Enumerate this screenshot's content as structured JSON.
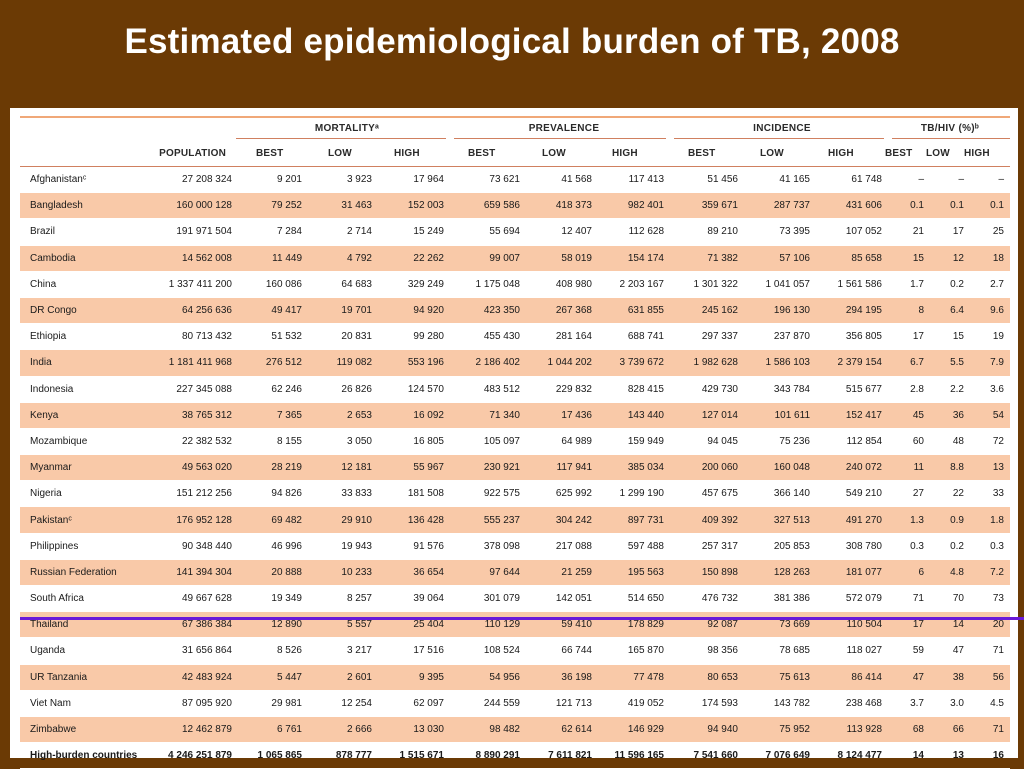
{
  "title": "Estimated epidemiological burden of TB, 2008",
  "groups": {
    "mortality": "MORTALITYᵃ",
    "prevalence": "PREVALENCE",
    "incidence": "INCIDENCE",
    "tbhiv": "TB/HIV (%)ᵇ"
  },
  "columns": {
    "population": "POPULATION",
    "best": "BEST",
    "low": "LOW",
    "high": "HIGH"
  },
  "rows": [
    {
      "country": "Afghanistanᶜ",
      "pop": "27 208 324",
      "m_best": "9 201",
      "m_low": "3 923",
      "m_high": "17 964",
      "p_best": "73 621",
      "p_low": "41 568",
      "p_high": "117 413",
      "i_best": "51 456",
      "i_low": "41 165",
      "i_high": "61 748",
      "h_best": "–",
      "h_low": "–",
      "h_high": "–"
    },
    {
      "country": "Bangladesh",
      "pop": "160 000 128",
      "m_best": "79 252",
      "m_low": "31 463",
      "m_high": "152 003",
      "p_best": "659 586",
      "p_low": "418 373",
      "p_high": "982 401",
      "i_best": "359 671",
      "i_low": "287 737",
      "i_high": "431 606",
      "h_best": "0.1",
      "h_low": "0.1",
      "h_high": "0.1"
    },
    {
      "country": "Brazil",
      "pop": "191 971 504",
      "m_best": "7 284",
      "m_low": "2 714",
      "m_high": "15 249",
      "p_best": "55 694",
      "p_low": "12 407",
      "p_high": "112 628",
      "i_best": "89 210",
      "i_low": "73 395",
      "i_high": "107 052",
      "h_best": "21",
      "h_low": "17",
      "h_high": "25"
    },
    {
      "country": "Cambodia",
      "pop": "14 562 008",
      "m_best": "11 449",
      "m_low": "4 792",
      "m_high": "22 262",
      "p_best": "99 007",
      "p_low": "58 019",
      "p_high": "154 174",
      "i_best": "71 382",
      "i_low": "57 106",
      "i_high": "85 658",
      "h_best": "15",
      "h_low": "12",
      "h_high": "18"
    },
    {
      "country": "China",
      "pop": "1 337 411 200",
      "m_best": "160 086",
      "m_low": "64 683",
      "m_high": "329 249",
      "p_best": "1 175 048",
      "p_low": "408 980",
      "p_high": "2 203 167",
      "i_best": "1 301 322",
      "i_low": "1 041 057",
      "i_high": "1 561 586",
      "h_best": "1.7",
      "h_low": "0.2",
      "h_high": "2.7"
    },
    {
      "country": "DR Congo",
      "pop": "64 256 636",
      "m_best": "49 417",
      "m_low": "19 701",
      "m_high": "94 920",
      "p_best": "423 350",
      "p_low": "267 368",
      "p_high": "631 855",
      "i_best": "245 162",
      "i_low": "196 130",
      "i_high": "294 195",
      "h_best": "8",
      "h_low": "6.4",
      "h_high": "9.6"
    },
    {
      "country": "Ethiopia",
      "pop": "80 713 432",
      "m_best": "51 532",
      "m_low": "20 831",
      "m_high": "99 280",
      "p_best": "455 430",
      "p_low": "281 164",
      "p_high": "688 741",
      "i_best": "297 337",
      "i_low": "237 870",
      "i_high": "356 805",
      "h_best": "17",
      "h_low": "15",
      "h_high": "19"
    },
    {
      "country": "India",
      "pop": "1 181 411 968",
      "m_best": "276 512",
      "m_low": "119 082",
      "m_high": "553 196",
      "p_best": "2 186 402",
      "p_low": "1 044 202",
      "p_high": "3 739 672",
      "i_best": "1 982 628",
      "i_low": "1 586 103",
      "i_high": "2 379 154",
      "h_best": "6.7",
      "h_low": "5.5",
      "h_high": "7.9"
    },
    {
      "country": "Indonesia",
      "pop": "227 345 088",
      "m_best": "62 246",
      "m_low": "26 826",
      "m_high": "124 570",
      "p_best": "483 512",
      "p_low": "229 832",
      "p_high": "828 415",
      "i_best": "429 730",
      "i_low": "343 784",
      "i_high": "515 677",
      "h_best": "2.8",
      "h_low": "2.2",
      "h_high": "3.6"
    },
    {
      "country": "Kenya",
      "pop": "38 765 312",
      "m_best": "7 365",
      "m_low": "2 653",
      "m_high": "16 092",
      "p_best": "71 340",
      "p_low": "17 436",
      "p_high": "143 440",
      "i_best": "127 014",
      "i_low": "101 611",
      "i_high": "152 417",
      "h_best": "45",
      "h_low": "36",
      "h_high": "54"
    },
    {
      "country": "Mozambique",
      "pop": "22 382 532",
      "m_best": "8 155",
      "m_low": "3 050",
      "m_high": "16 805",
      "p_best": "105 097",
      "p_low": "64 989",
      "p_high": "159 949",
      "i_best": "94 045",
      "i_low": "75 236",
      "i_high": "112 854",
      "h_best": "60",
      "h_low": "48",
      "h_high": "72"
    },
    {
      "country": "Myanmar",
      "pop": "49 563 020",
      "m_best": "28 219",
      "m_low": "12 181",
      "m_high": "55 967",
      "p_best": "230 921",
      "p_low": "117 941",
      "p_high": "385 034",
      "i_best": "200 060",
      "i_low": "160 048",
      "i_high": "240 072",
      "h_best": "11",
      "h_low": "8.8",
      "h_high": "13"
    },
    {
      "country": "Nigeria",
      "pop": "151 212 256",
      "m_best": "94 826",
      "m_low": "33 833",
      "m_high": "181 508",
      "p_best": "922 575",
      "p_low": "625 992",
      "p_high": "1 299 190",
      "i_best": "457 675",
      "i_low": "366 140",
      "i_high": "549 210",
      "h_best": "27",
      "h_low": "22",
      "h_high": "33"
    },
    {
      "country": "Pakistanᶜ",
      "pop": "176 952 128",
      "m_best": "69 482",
      "m_low": "29 910",
      "m_high": "136 428",
      "p_best": "555 237",
      "p_low": "304 242",
      "p_high": "897 731",
      "i_best": "409 392",
      "i_low": "327 513",
      "i_high": "491 270",
      "h_best": "1.3",
      "h_low": "0.9",
      "h_high": "1.8"
    },
    {
      "country": "Philippines",
      "pop": "90 348 440",
      "m_best": "46 996",
      "m_low": "19 943",
      "m_high": "91 576",
      "p_best": "378 098",
      "p_low": "217 088",
      "p_high": "597 488",
      "i_best": "257 317",
      "i_low": "205 853",
      "i_high": "308 780",
      "h_best": "0.3",
      "h_low": "0.2",
      "h_high": "0.3"
    },
    {
      "country": "Russian Federation",
      "pop": "141 394 304",
      "m_best": "20 888",
      "m_low": "10 233",
      "m_high": "36 654",
      "p_best": "97 644",
      "p_low": "21 259",
      "p_high": "195 563",
      "i_best": "150 898",
      "i_low": "128 263",
      "i_high": "181 077",
      "h_best": "6",
      "h_low": "4.8",
      "h_high": "7.2"
    },
    {
      "country": "South Africa",
      "pop": "49 667 628",
      "m_best": "19 349",
      "m_low": "8 257",
      "m_high": "39 064",
      "p_best": "301 079",
      "p_low": "142 051",
      "p_high": "514 650",
      "i_best": "476 732",
      "i_low": "381 386",
      "i_high": "572 079",
      "h_best": "71",
      "h_low": "70",
      "h_high": "73"
    },
    {
      "country": "Thailand",
      "pop": "67 386 384",
      "m_best": "12 890",
      "m_low": "5 557",
      "m_high": "25 404",
      "p_best": "110 129",
      "p_low": "59 410",
      "p_high": "178 829",
      "i_best": "92 087",
      "i_low": "73 669",
      "i_high": "110 504",
      "h_best": "17",
      "h_low": "14",
      "h_high": "20"
    },
    {
      "country": "Uganda",
      "pop": "31 656 864",
      "m_best": "8 526",
      "m_low": "3 217",
      "m_high": "17 516",
      "p_best": "108 524",
      "p_low": "66 744",
      "p_high": "165 870",
      "i_best": "98 356",
      "i_low": "78 685",
      "i_high": "118 027",
      "h_best": "59",
      "h_low": "47",
      "h_high": "71"
    },
    {
      "country": "UR Tanzania",
      "pop": "42 483 924",
      "m_best": "5 447",
      "m_low": "2 601",
      "m_high": "9 395",
      "p_best": "54 956",
      "p_low": "36 198",
      "p_high": "77 478",
      "i_best": "80 653",
      "i_low": "75 613",
      "i_high": "86 414",
      "h_best": "47",
      "h_low": "38",
      "h_high": "56"
    },
    {
      "country": "Viet Nam",
      "pop": "87 095 920",
      "m_best": "29 981",
      "m_low": "12 254",
      "m_high": "62 097",
      "p_best": "244 559",
      "p_low": "121 713",
      "p_high": "419 052",
      "i_best": "174 593",
      "i_low": "143 782",
      "i_high": "238 468",
      "h_best": "3.7",
      "h_low": "3.0",
      "h_high": "4.5"
    },
    {
      "country": "Zimbabwe",
      "pop": "12 462 879",
      "m_best": "6 761",
      "m_low": "2 666",
      "m_high": "13 030",
      "p_best": "98 482",
      "p_low": "62 614",
      "p_high": "146 929",
      "i_best": "94 940",
      "i_low": "75 952",
      "i_high": "113 928",
      "h_best": "68",
      "h_low": "66",
      "h_high": "71"
    }
  ],
  "total": {
    "country": "High-burden countries",
    "pop": "4 246 251 879",
    "m_best": "1 065 865",
    "m_low": "878 777",
    "m_high": "1 515 671",
    "p_best": "8 890 291",
    "p_low": "7 611 821",
    "p_high": "11 596 165",
    "i_best": "7 541 660",
    "i_low": "7 076 649",
    "i_high": "8 124 477",
    "h_best": "14",
    "h_low": "13",
    "h_high": "16"
  },
  "colors": {
    "background": "#6b3a05",
    "row_shade": "#f9c9a8",
    "highlight_line": "#6a19d8"
  }
}
